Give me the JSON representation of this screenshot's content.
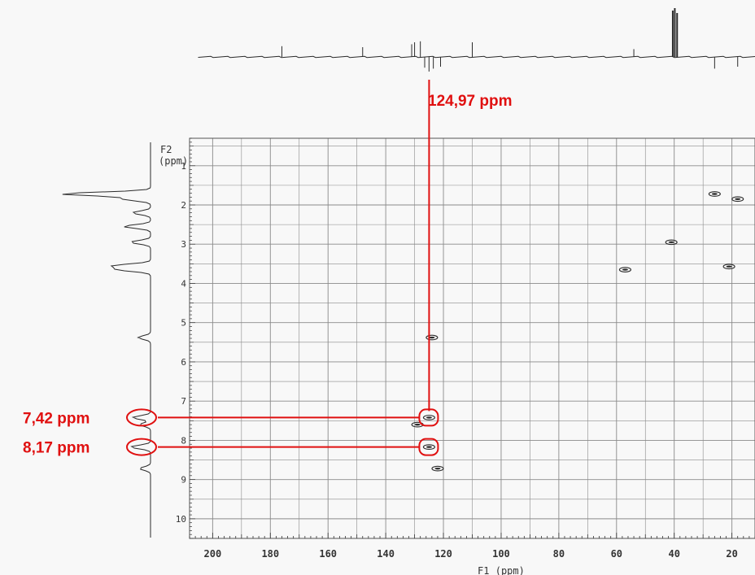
{
  "colors": {
    "annotation": "#e01010",
    "grid": "#8a8a8a",
    "ink": "#2b2b2b",
    "paper": "#fcfcfc"
  },
  "chart_data": {
    "type": "scatter",
    "subtype": "2D NMR correlation spectrum (HSQC-type contour plot)",
    "x_axis": {
      "label": "F1 (ppm)",
      "range": [
        208,
        12
      ],
      "reversed": true,
      "ticks": [
        200,
        180,
        160,
        140,
        120,
        100,
        80,
        60,
        40,
        20
      ]
    },
    "y_axis": {
      "label_line1": "F2",
      "label_line2": "(ppm)",
      "range": [
        0.3,
        10.5
      ],
      "reversed": true,
      "ticks": [
        1,
        2,
        3,
        4,
        5,
        6,
        7,
        8,
        9,
        10
      ]
    },
    "grid": true,
    "cross_peaks": [
      {
        "x": 26,
        "y": 1.72
      },
      {
        "x": 18,
        "y": 1.85
      },
      {
        "x": 41,
        "y": 2.95
      },
      {
        "x": 21,
        "y": 3.57
      },
      {
        "x": 57,
        "y": 3.65
      },
      {
        "x": 124,
        "y": 5.38
      },
      {
        "x": 124.97,
        "y": 7.42
      },
      {
        "x": 129,
        "y": 7.6
      },
      {
        "x": 124.97,
        "y": 8.17
      },
      {
        "x": 122,
        "y": 8.72
      }
    ],
    "top_projection_peaks": [
      {
        "x": 176,
        "height": 0.22,
        "sign": 1
      },
      {
        "x": 148,
        "height": 0.2,
        "sign": 1
      },
      {
        "x": 131,
        "height": 0.26,
        "sign": 1
      },
      {
        "x": 130,
        "height": 0.3,
        "sign": 1
      },
      {
        "x": 128,
        "height": 0.32,
        "sign": 1
      },
      {
        "x": 126.5,
        "height": 0.22,
        "sign": -1
      },
      {
        "x": 125,
        "height": 0.3,
        "sign": -1
      },
      {
        "x": 123.5,
        "height": 0.24,
        "sign": -1
      },
      {
        "x": 121,
        "height": 0.2,
        "sign": -1
      },
      {
        "x": 110,
        "height": 0.3,
        "sign": 1
      },
      {
        "x": 54,
        "height": 0.16,
        "sign": 1
      },
      {
        "x": 40.5,
        "height": 0.95,
        "sign": 1
      },
      {
        "x": 39.8,
        "height": 1.0,
        "sign": 1
      },
      {
        "x": 39,
        "height": 0.9,
        "sign": 1
      },
      {
        "x": 26,
        "height": 0.24,
        "sign": -1
      },
      {
        "x": 18,
        "height": 0.2,
        "sign": -1
      }
    ],
    "left_projection_peaks": [
      {
        "y": 1.72,
        "height": 1.0
      },
      {
        "y": 1.85,
        "height": 0.3
      },
      {
        "y": 2.2,
        "height": 0.2
      },
      {
        "y": 2.55,
        "height": 0.3
      },
      {
        "y": 2.95,
        "height": 0.22
      },
      {
        "y": 3.55,
        "height": 0.4
      },
      {
        "y": 3.65,
        "height": 0.35
      },
      {
        "y": 5.38,
        "height": 0.14
      },
      {
        "y": 7.42,
        "height": 0.2
      },
      {
        "y": 7.6,
        "height": 0.12
      },
      {
        "y": 8.17,
        "height": 0.22
      },
      {
        "y": 8.72,
        "height": 0.12
      }
    ],
    "annotations": [
      {
        "text": "124,97 ppm",
        "x": 124.97
      },
      {
        "text": "7,42 ppm",
        "y": 7.42,
        "x": 124.97
      },
      {
        "text": "8,17 ppm",
        "y": 8.17,
        "x": 124.97
      }
    ]
  }
}
